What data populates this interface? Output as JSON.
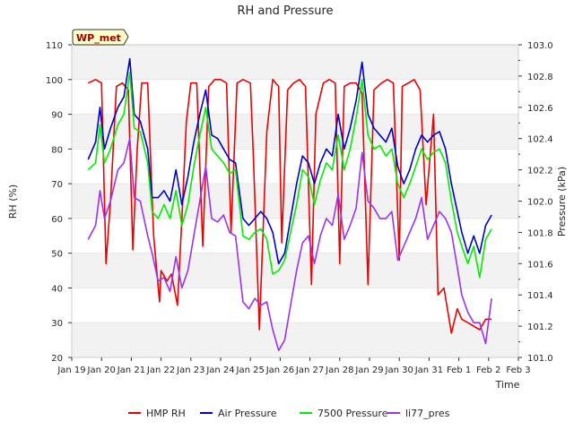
{
  "chart_data": {
    "type": "line",
    "title": "RH and Pressure",
    "xlabel": "Time",
    "ylabel_left": "RH (%)",
    "ylabel_right": "Pressure (kPa)",
    "ylim_left": [
      20,
      110
    ],
    "ylim_right": [
      101.0,
      103.0
    ],
    "yticks_left": [
      20,
      30,
      40,
      50,
      60,
      70,
      80,
      90,
      100,
      110
    ],
    "yticks_right": [
      101.0,
      101.2,
      101.4,
      101.6,
      101.8,
      102.0,
      102.2,
      102.4,
      102.6,
      102.8,
      103.0
    ],
    "ytick_labels_right": [
      "101.0",
      "101.2",
      "101.4",
      "101.6",
      "101.8",
      "102.0",
      "102.2",
      "102.4",
      "102.6",
      "102.8",
      "103.0"
    ],
    "x_domain": [
      0,
      15
    ],
    "xticks": [
      "Jan 19",
      "Jan 20",
      "Jan 21",
      "Jan 22",
      "Jan 23",
      "Jan 24",
      "Jan 25",
      "Jan 26",
      "Jan 27",
      "Jan 28",
      "Jan 29",
      "Jan 30",
      "Jan 31",
      "Feb 1",
      "Feb 2",
      "Feb 3"
    ],
    "xtick_values": [
      0,
      1,
      2,
      3,
      4,
      5,
      6,
      7,
      8,
      9,
      10,
      11,
      12,
      13,
      14,
      15
    ],
    "grid": "horizontal-bands",
    "legend_position": "bottom",
    "annotation": "WP_met",
    "series": [
      {
        "name": "HMP RH",
        "axis": "left",
        "color": "#ee0000",
        "x": [
          0.55,
          0.8,
          1.0,
          1.15,
          1.3,
          1.5,
          1.7,
          1.9,
          2.05,
          2.2,
          2.35,
          2.55,
          2.75,
          2.95,
          3.0,
          3.2,
          3.35,
          3.55,
          3.7,
          3.85,
          4.0,
          4.2,
          4.4,
          4.6,
          4.8,
          5.0,
          5.2,
          5.35,
          5.55,
          5.75,
          6.0,
          6.1,
          6.3,
          6.55,
          6.75,
          6.95,
          7.05,
          7.25,
          7.45,
          7.65,
          7.85,
          8.05,
          8.2,
          8.45,
          8.65,
          8.85,
          9.0,
          9.15,
          9.35,
          9.55,
          9.75,
          9.95,
          10.15,
          10.4,
          10.6,
          10.8,
          11.0,
          11.1,
          11.3,
          11.5,
          11.7,
          11.9,
          12.15,
          12.3,
          12.5,
          12.75,
          12.95,
          13.1,
          13.3,
          13.5,
          13.7,
          13.9,
          14.1
        ],
        "values": [
          99,
          100,
          99,
          47,
          65,
          98,
          99,
          97,
          51,
          80,
          99,
          99,
          55,
          36,
          45,
          42,
          44,
          35,
          60,
          88,
          99,
          99,
          52,
          98,
          100,
          100,
          99,
          56,
          99,
          100,
          99,
          78,
          28,
          85,
          100,
          98,
          53,
          97,
          99,
          100,
          98,
          41,
          90,
          99,
          100,
          99,
          47,
          98,
          99,
          99,
          96,
          41,
          97,
          99,
          100,
          99,
          48,
          98,
          99,
          100,
          97,
          64,
          90,
          38,
          40,
          27,
          34,
          31,
          30,
          29,
          28,
          31,
          31
        ]
      },
      {
        "name": "Air Pressure",
        "axis": "left",
        "color": "#0000cc",
        "x": [
          0.55,
          0.8,
          0.95,
          1.1,
          1.3,
          1.55,
          1.75,
          1.95,
          2.1,
          2.3,
          2.55,
          2.7,
          2.9,
          3.1,
          3.3,
          3.5,
          3.7,
          3.9,
          4.1,
          4.3,
          4.5,
          4.7,
          4.9,
          5.1,
          5.3,
          5.5,
          5.75,
          5.95,
          6.15,
          6.35,
          6.55,
          6.75,
          6.95,
          7.15,
          7.35,
          7.55,
          7.75,
          7.95,
          8.15,
          8.35,
          8.55,
          8.75,
          8.95,
          9.15,
          9.35,
          9.55,
          9.75,
          9.95,
          10.15,
          10.35,
          10.55,
          10.75,
          10.95,
          11.15,
          11.35,
          11.55,
          11.75,
          11.95,
          12.15,
          12.35,
          12.55,
          12.75,
          12.95,
          13.1,
          13.3,
          13.5,
          13.7,
          13.9,
          14.1
        ],
        "values": [
          77,
          82,
          92,
          80,
          86,
          92,
          95,
          106,
          90,
          88,
          80,
          66,
          66,
          68,
          65,
          74,
          64,
          72,
          82,
          90,
          97,
          84,
          83,
          80,
          77,
          76,
          60,
          58,
          60,
          62,
          60,
          56,
          47,
          50,
          60,
          70,
          78,
          76,
          70,
          76,
          80,
          78,
          90,
          80,
          86,
          94,
          105,
          90,
          86,
          84,
          82,
          86,
          75,
          70,
          74,
          80,
          84,
          82,
          84,
          85,
          80,
          70,
          62,
          56,
          50,
          55,
          50,
          58,
          61
        ]
      },
      {
        "name": "7500 Pressure",
        "axis": "left",
        "color": "#00ee00",
        "x": [
          0.55,
          0.8,
          0.95,
          1.1,
          1.3,
          1.55,
          1.75,
          1.95,
          2.1,
          2.3,
          2.55,
          2.7,
          2.9,
          3.1,
          3.3,
          3.5,
          3.7,
          3.9,
          4.1,
          4.3,
          4.5,
          4.7,
          4.9,
          5.1,
          5.3,
          5.5,
          5.75,
          5.95,
          6.15,
          6.35,
          6.55,
          6.75,
          6.95,
          7.15,
          7.35,
          7.55,
          7.75,
          7.95,
          8.15,
          8.35,
          8.55,
          8.75,
          8.95,
          9.15,
          9.35,
          9.55,
          9.75,
          9.95,
          10.15,
          10.35,
          10.55,
          10.75,
          10.95,
          11.15,
          11.35,
          11.55,
          11.75,
          11.95,
          12.15,
          12.35,
          12.55,
          12.75,
          12.95,
          13.1,
          13.3,
          13.5,
          13.7,
          13.9,
          14.1
        ],
        "values": [
          74,
          76,
          87,
          76,
          80,
          87,
          90,
          102,
          86,
          85,
          76,
          62,
          60,
          64,
          60,
          68,
          58,
          64,
          75,
          84,
          92,
          80,
          78,
          76,
          73,
          74,
          55,
          54,
          56,
          57,
          54,
          44,
          45,
          48,
          56,
          64,
          74,
          72,
          64,
          71,
          76,
          74,
          84,
          74,
          80,
          89,
          100,
          84,
          80,
          81,
          78,
          80,
          70,
          66,
          70,
          75,
          80,
          77,
          79,
          80,
          76,
          65,
          56,
          52,
          47,
          52,
          43,
          54,
          57
        ]
      },
      {
        "name": "li77_pres",
        "axis": "left",
        "color": "#9933ee",
        "x": [
          0.55,
          0.8,
          0.95,
          1.1,
          1.3,
          1.55,
          1.75,
          1.95,
          2.1,
          2.3,
          2.55,
          2.7,
          2.9,
          3.1,
          3.3,
          3.5,
          3.7,
          3.9,
          4.1,
          4.3,
          4.5,
          4.7,
          4.9,
          5.1,
          5.3,
          5.5,
          5.75,
          5.95,
          6.15,
          6.35,
          6.55,
          6.75,
          6.95,
          7.15,
          7.35,
          7.55,
          7.75,
          7.95,
          8.15,
          8.35,
          8.55,
          8.75,
          8.95,
          9.15,
          9.35,
          9.55,
          9.75,
          9.95,
          10.15,
          10.35,
          10.55,
          10.75,
          10.95,
          11.15,
          11.35,
          11.55,
          11.75,
          11.95,
          12.15,
          12.35,
          12.55,
          12.75,
          12.95,
          13.1,
          13.3,
          13.5,
          13.7,
          13.9,
          14.1
        ],
        "values": [
          54,
          58,
          68,
          60,
          65,
          74,
          76,
          83,
          66,
          65,
          55,
          50,
          42,
          43,
          39,
          49,
          40,
          45,
          55,
          65,
          75,
          60,
          59,
          61,
          56,
          55,
          36,
          34,
          37,
          35,
          36,
          28,
          22,
          25,
          35,
          45,
          53,
          55,
          47,
          55,
          60,
          58,
          67,
          54,
          58,
          63,
          79,
          65,
          63,
          60,
          60,
          62,
          48,
          52,
          56,
          60,
          66,
          54,
          58,
          62,
          60,
          56,
          46,
          38,
          33,
          30,
          30,
          24,
          37
        ]
      }
    ]
  }
}
